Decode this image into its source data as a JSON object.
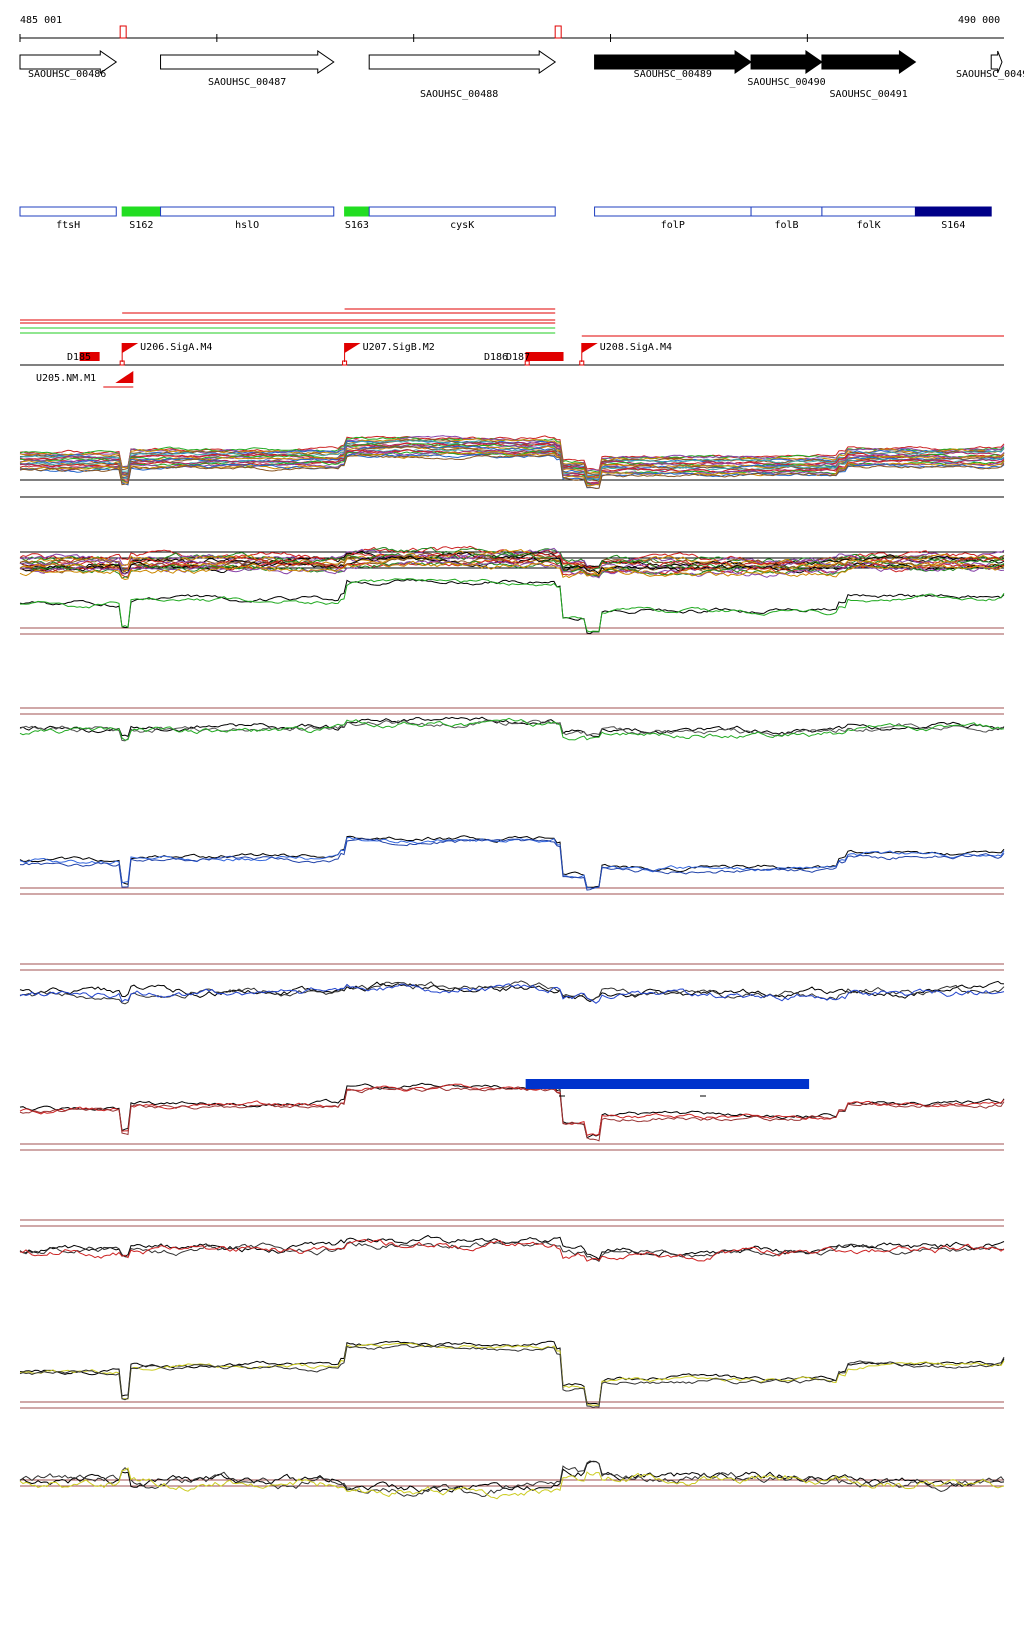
{
  "ruler": {
    "start_label": "485 001",
    "end_label": "490 000",
    "start": 485001,
    "end": 490000,
    "red_markers": [
      485520,
      487730
    ]
  },
  "genes": [
    {
      "id": "SAOUHSC_00486",
      "start": 485001,
      "end": 485490,
      "filled": false
    },
    {
      "id": "SAOUHSC_00487",
      "start": 485715,
      "end": 486595,
      "filled": false
    },
    {
      "id": "SAOUHSC_00488",
      "start": 486775,
      "end": 487720,
      "filled": false
    },
    {
      "id": "SAOUHSC_00489",
      "start": 487920,
      "end": 488715,
      "filled": true
    },
    {
      "id": "SAOUHSC_00490",
      "start": 488715,
      "end": 489075,
      "filled": true
    },
    {
      "id": "SAOUHSC_00491",
      "start": 489075,
      "end": 489550,
      "filled": true
    },
    {
      "id": "SAOUHSC_0049",
      "start": 489935,
      "end": 490000,
      "filled": false
    }
  ],
  "annotations": [
    {
      "label": "ftsH",
      "start": 485001,
      "end": 485490,
      "kind": "cds"
    },
    {
      "label": "S162",
      "start": 485520,
      "end": 485715,
      "kind": "srna-green"
    },
    {
      "label": "hslO",
      "start": 485715,
      "end": 486595,
      "kind": "cds"
    },
    {
      "label": "S163",
      "start": 486650,
      "end": 486775,
      "kind": "srna-green"
    },
    {
      "label": "cysK",
      "start": 486775,
      "end": 487720,
      "kind": "cds"
    },
    {
      "label": "folP",
      "start": 487920,
      "end": 488715,
      "kind": "cds"
    },
    {
      "label": "folB",
      "start": 488715,
      "end": 489075,
      "kind": "cds"
    },
    {
      "label": "folK",
      "start": 489075,
      "end": 489550,
      "kind": "cds"
    },
    {
      "label": "S164",
      "start": 489550,
      "end": 489935,
      "kind": "srna-navy"
    }
  ],
  "features": {
    "promoters": [
      {
        "label": "U206.SigA.M4",
        "pos": 485520
      },
      {
        "label": "U207.SigB.M2",
        "pos": 486650
      },
      {
        "label": "U208.SigA.M4",
        "pos": 487855
      },
      {
        "label": "U205.NM.M1",
        "pos": 485475
      }
    ],
    "terminators": [
      {
        "label": "D185",
        "pos": 485375,
        "start": 485375,
        "end": 485475
      },
      {
        "label": "D186",
        "pos": 487520,
        "start": 487620,
        "end": 487720
      },
      {
        "label": "D187",
        "pos": 487580,
        "start": 487620,
        "end": 487720
      }
    ]
  },
  "highlight_region": {
    "start": 487580,
    "end": 489020,
    "color": "#0033cc"
  }
}
